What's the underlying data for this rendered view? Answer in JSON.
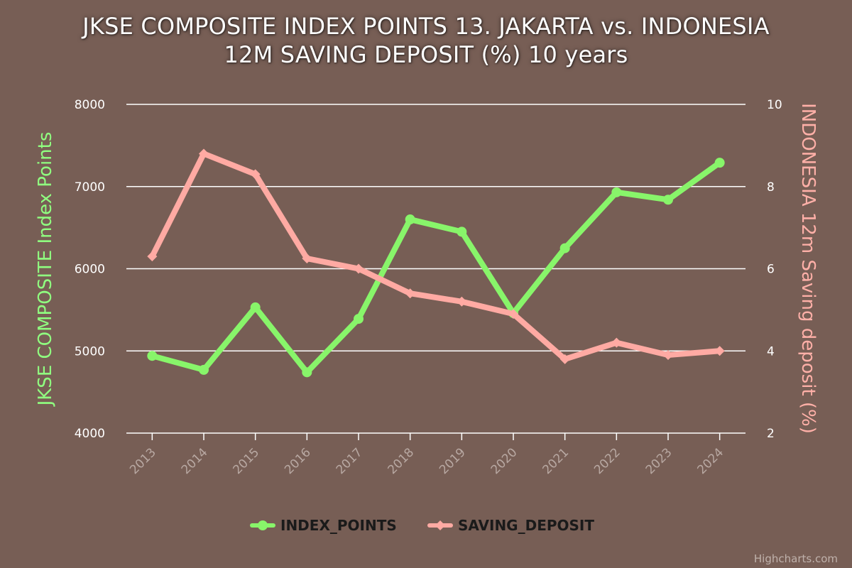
{
  "chart_data": {
    "type": "line",
    "title_lines": [
      "JKSE COMPOSITE INDEX POINTS 13. JAKARTA vs. INDONESIA",
      "12M SAVING DEPOSIT (%) 10 years"
    ],
    "categories": [
      "2013",
      "2014",
      "2015",
      "2016",
      "2017",
      "2018",
      "2019",
      "2020",
      "2021",
      "2022",
      "2023",
      "2024"
    ],
    "y_left": {
      "label": "JKSE COMPOSITE Index Points",
      "min": 4000,
      "max": 8000,
      "ticks": [
        4000,
        5000,
        6000,
        7000,
        8000
      ],
      "color": "#90ff80"
    },
    "y_right": {
      "label": "INDONESIA 12m Saving deposit (%)",
      "min": 2,
      "max": 10,
      "ticks": [
        2,
        4,
        6,
        8,
        10
      ],
      "color": "#ffb0a8"
    },
    "series": [
      {
        "name": "INDEX_POINTS",
        "axis": "left",
        "color": "#88f56a",
        "values": [
          4940,
          4770,
          5530,
          4740,
          5390,
          6600,
          6450,
          5460,
          6250,
          6930,
          6840,
          7290
        ]
      },
      {
        "name": "SAVING_DEPOSIT",
        "axis": "right",
        "color": "#ffaaa3",
        "values": [
          6.3,
          8.8,
          8.3,
          6.25,
          6.0,
          5.4,
          5.2,
          4.9,
          3.8,
          4.2,
          3.9,
          4.0
        ]
      }
    ],
    "grid": true,
    "legend_position": "bottom-center"
  },
  "credit": "Highcharts.com"
}
